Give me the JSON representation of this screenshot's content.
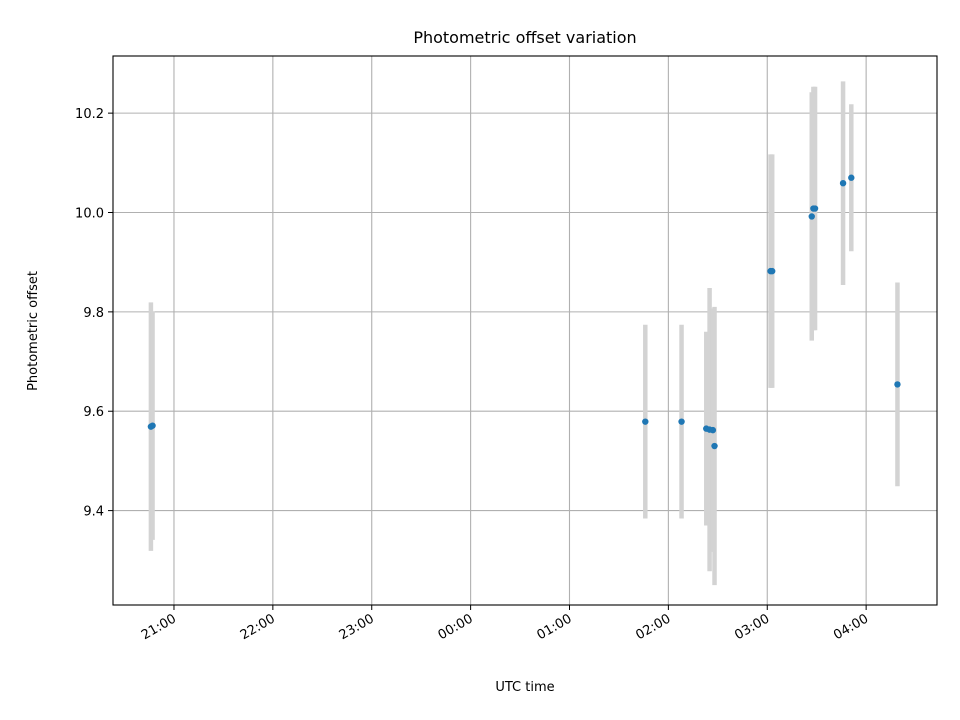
{
  "chart_data": {
    "type": "scatter",
    "title": "Photometric offset variation",
    "xlabel": "UTC time",
    "ylabel": "Photometric offset",
    "x_reference_date": "1970-01-01",
    "x_ticks": [
      "21:00",
      "22:00",
      "23:00",
      "00:00",
      "01:00",
      "02:00",
      "03:00",
      "04:00"
    ],
    "xlim": [
      "20:23",
      "04:43 (+1 day)"
    ],
    "ylim": [
      9.21,
      10.315
    ],
    "y_ticks": [
      9.4,
      9.6,
      9.8,
      10.0,
      10.2
    ],
    "grid": true,
    "colors": {
      "point": "#1f77b4",
      "error_bar": "#d3d3d3"
    },
    "series": [
      {
        "points": [
          {
            "time": "20:46",
            "y": 9.569,
            "yerr": 0.25
          },
          {
            "time": "20:47",
            "y": 9.571,
            "yerr": 0.23
          },
          {
            "time": "01:46",
            "y": 9.579,
            "yerr": 0.195
          },
          {
            "time": "02:08",
            "y": 9.579,
            "yerr": 0.195
          },
          {
            "time": "02:23",
            "y": 9.565,
            "yerr": 0.195
          },
          {
            "time": "02:25",
            "y": 9.563,
            "yerr": 0.285
          },
          {
            "time": "02:27",
            "y": 9.562,
            "yerr": 0.245
          },
          {
            "time": "02:28",
            "y": 9.53,
            "yerr": 0.28
          },
          {
            "time": "03:02",
            "y": 9.882,
            "yerr": 0.235
          },
          {
            "time": "03:03",
            "y": 9.882,
            "yerr": 0.235
          },
          {
            "time": "03:27",
            "y": 9.992,
            "yerr": 0.25
          },
          {
            "time": "03:28",
            "y": 10.008,
            "yerr": 0.245
          },
          {
            "time": "03:29",
            "y": 10.008,
            "yerr": 0.245
          },
          {
            "time": "03:46",
            "y": 10.059,
            "yerr": 0.205
          },
          {
            "time": "03:51",
            "y": 10.07,
            "yerr": 0.148
          },
          {
            "time": "04:19",
            "y": 9.654,
            "yerr": 0.205
          }
        ]
      }
    ]
  }
}
